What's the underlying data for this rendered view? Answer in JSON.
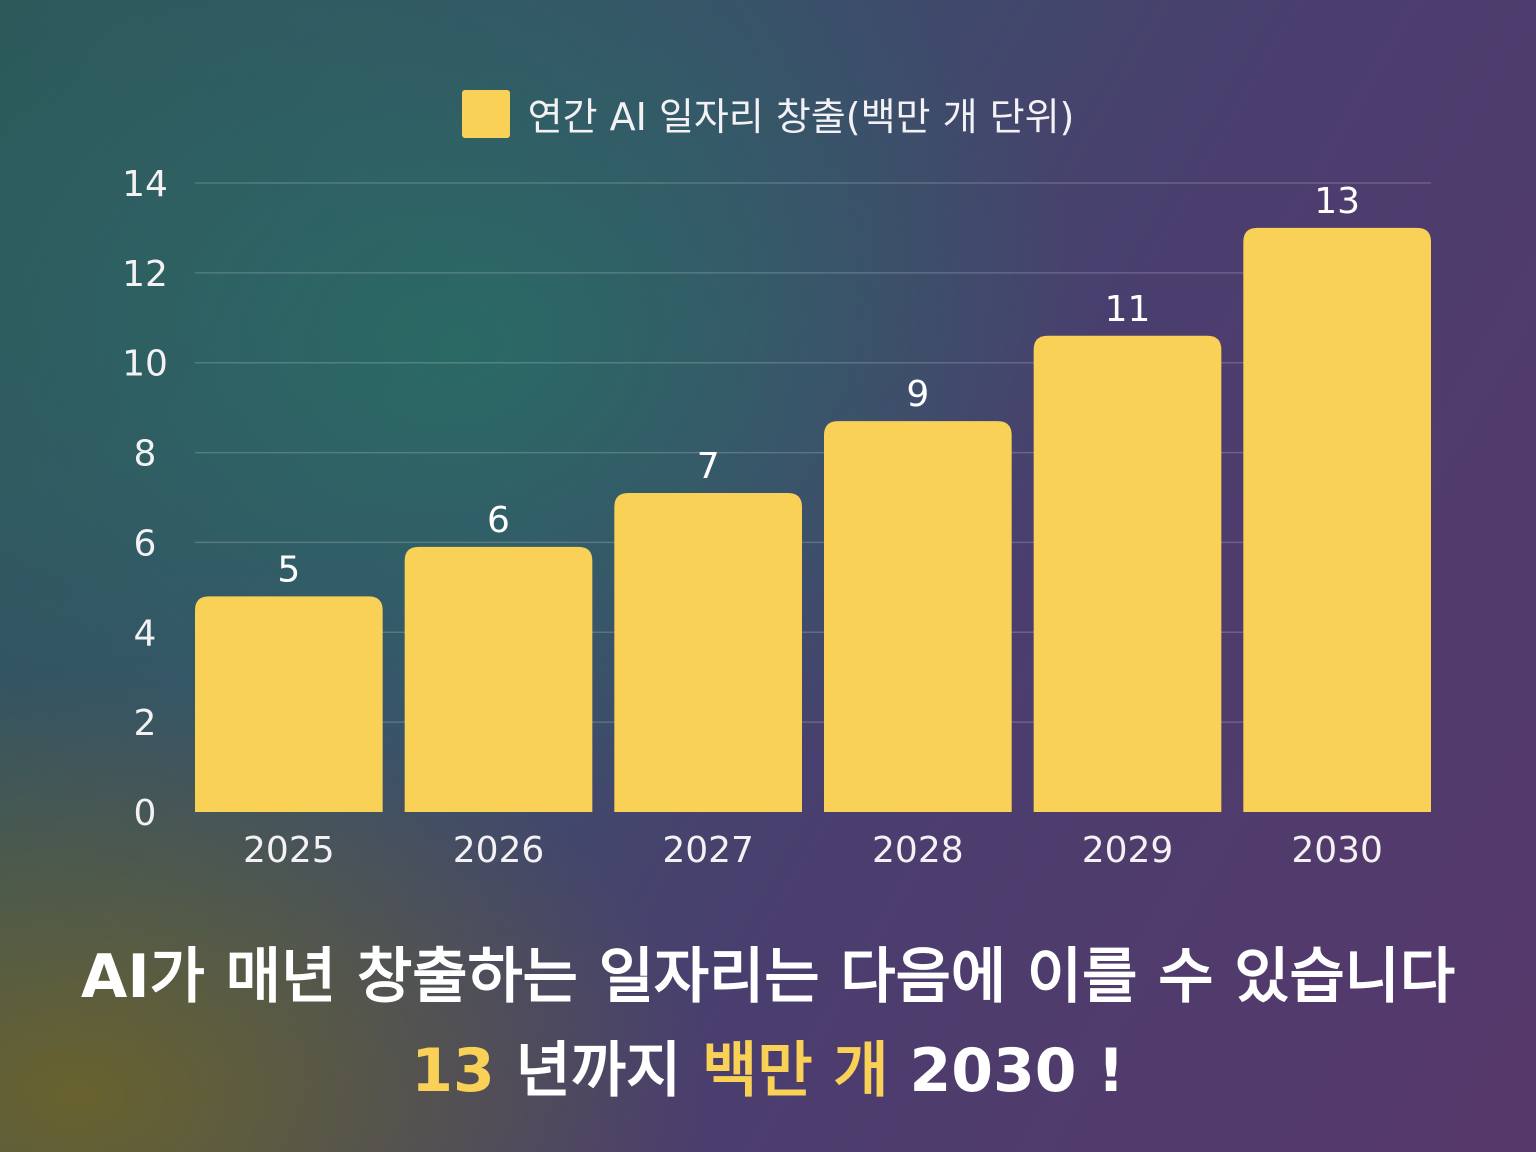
{
  "chart_data": {
    "type": "bar",
    "categories": [
      "2025",
      "2026",
      "2027",
      "2028",
      "2029",
      "2030"
    ],
    "series": [
      {
        "name": "연간 AI 일자리 창출(백만 개 단위)",
        "values": [
          4.8,
          5.9,
          7.1,
          8.7,
          10.6,
          13.0
        ],
        "labels": [
          "5",
          "6",
          "7",
          "9",
          "11",
          "13"
        ]
      }
    ],
    "ylim": [
      0,
      14
    ],
    "yticks": [
      "0",
      "2",
      "4",
      "6",
      "8",
      "10",
      "12",
      "14"
    ],
    "grid": true,
    "legend": "top-center",
    "bar_color": "#f9d157"
  },
  "headline": {
    "line1": "AI가 매년 창출하는 일자리는 다음에 이를 수 있습니다",
    "line2_parts": [
      "13",
      " 년까지 ",
      "백만 개",
      " 2030 !"
    ]
  },
  "colors": {
    "accent": "#f9d157",
    "text": "#ffffff"
  }
}
